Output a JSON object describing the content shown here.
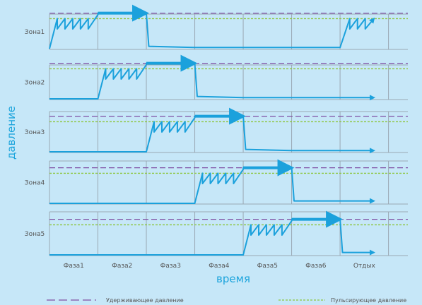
{
  "chart_data": {
    "type": "line",
    "xlabel": "время",
    "ylabel": "давление",
    "categories": [
      "Фаза1",
      "Фаза2",
      "Фаза3",
      "Фаза4",
      "Фаза5",
      "Фаза6",
      "Отдых"
    ],
    "zones": [
      "Зона1",
      "Зона2",
      "Зона3",
      "Зона4",
      "Зона5"
    ],
    "y_scale": {
      "min": 0,
      "max": 1,
      "hold_level": 0.9,
      "pulse_level": 0.76
    },
    "series": [
      {
        "name": "Зона1",
        "points": [
          [
            0,
            0
          ],
          [
            0.16,
            0.76
          ],
          [
            0.16,
            0.5
          ],
          [
            0.32,
            0.76
          ],
          [
            0.32,
            0.5
          ],
          [
            0.48,
            0.76
          ],
          [
            0.48,
            0.5
          ],
          [
            0.64,
            0.76
          ],
          [
            0.64,
            0.5
          ],
          [
            0.8,
            0.76
          ],
          [
            0.8,
            0.5
          ],
          [
            1,
            0.86
          ],
          [
            1,
            0.9
          ],
          [
            2,
            0.9
          ],
          [
            2.05,
            0.06
          ],
          [
            3,
            0.03
          ],
          [
            4,
            0.03
          ],
          [
            5,
            0.03
          ],
          [
            6,
            0.03
          ],
          [
            6.2,
            0.76
          ],
          [
            6.2,
            0.5
          ],
          [
            6.36,
            0.76
          ],
          [
            6.36,
            0.5
          ],
          [
            6.52,
            0.76
          ],
          [
            6.52,
            0.5
          ],
          [
            6.7,
            0.76
          ]
        ]
      },
      {
        "name": "Зона2",
        "points": [
          [
            0,
            0
          ],
          [
            1,
            0
          ],
          [
            1.16,
            0.76
          ],
          [
            1.16,
            0.5
          ],
          [
            1.32,
            0.76
          ],
          [
            1.32,
            0.5
          ],
          [
            1.48,
            0.76
          ],
          [
            1.48,
            0.5
          ],
          [
            1.64,
            0.76
          ],
          [
            1.64,
            0.5
          ],
          [
            1.8,
            0.76
          ],
          [
            1.8,
            0.5
          ],
          [
            2,
            0.86
          ],
          [
            2,
            0.9
          ],
          [
            3,
            0.9
          ],
          [
            3.05,
            0.06
          ],
          [
            4,
            0.03
          ],
          [
            5,
            0.03
          ],
          [
            6,
            0.03
          ],
          [
            6.7,
            0.03
          ]
        ]
      },
      {
        "name": "Зона3",
        "points": [
          [
            0,
            0
          ],
          [
            1,
            0
          ],
          [
            2,
            0
          ],
          [
            2.16,
            0.76
          ],
          [
            2.16,
            0.5
          ],
          [
            2.32,
            0.76
          ],
          [
            2.32,
            0.5
          ],
          [
            2.48,
            0.76
          ],
          [
            2.48,
            0.5
          ],
          [
            2.64,
            0.76
          ],
          [
            2.64,
            0.5
          ],
          [
            2.8,
            0.76
          ],
          [
            2.8,
            0.5
          ],
          [
            3,
            0.86
          ],
          [
            3,
            0.9
          ],
          [
            4,
            0.9
          ],
          [
            4.05,
            0.06
          ],
          [
            5,
            0.03
          ],
          [
            6,
            0.03
          ],
          [
            6.7,
            0.03
          ]
        ]
      },
      {
        "name": "Зона4",
        "points": [
          [
            0,
            0
          ],
          [
            1,
            0
          ],
          [
            2,
            0
          ],
          [
            3,
            0
          ],
          [
            3.16,
            0.76
          ],
          [
            3.16,
            0.5
          ],
          [
            3.32,
            0.76
          ],
          [
            3.32,
            0.5
          ],
          [
            3.48,
            0.76
          ],
          [
            3.48,
            0.5
          ],
          [
            3.64,
            0.76
          ],
          [
            3.64,
            0.5
          ],
          [
            3.8,
            0.76
          ],
          [
            3.8,
            0.5
          ],
          [
            4,
            0.86
          ],
          [
            4,
            0.9
          ],
          [
            5,
            0.9
          ],
          [
            5.05,
            0.06
          ],
          [
            6,
            0.06
          ],
          [
            6.7,
            0.06
          ]
        ]
      },
      {
        "name": "Зона5",
        "points": [
          [
            0,
            0
          ],
          [
            1,
            0
          ],
          [
            2,
            0
          ],
          [
            3,
            0
          ],
          [
            4,
            0
          ],
          [
            4.16,
            0.76
          ],
          [
            4.16,
            0.5
          ],
          [
            4.32,
            0.76
          ],
          [
            4.32,
            0.5
          ],
          [
            4.48,
            0.76
          ],
          [
            4.48,
            0.5
          ],
          [
            4.64,
            0.76
          ],
          [
            4.64,
            0.5
          ],
          [
            4.8,
            0.76
          ],
          [
            4.8,
            0.5
          ],
          [
            5,
            0.86
          ],
          [
            5,
            0.9
          ],
          [
            6,
            0.9
          ],
          [
            6.05,
            0.06
          ],
          [
            6.7,
            0.06
          ]
        ]
      }
    ],
    "hold_arrows": [
      {
        "zone": "Зона1",
        "from": 1,
        "to": 2
      },
      {
        "zone": "Зона2",
        "from": 2,
        "to": 3
      },
      {
        "zone": "Зона3",
        "from": 3,
        "to": 4
      },
      {
        "zone": "Зона4",
        "from": 4,
        "to": 5
      },
      {
        "zone": "Зона5",
        "from": 5,
        "to": 6
      }
    ],
    "legend": {
      "hold_label": "Удерживающее давление",
      "pulse_label": "Пульсирующее давление",
      "hold_color": "#7f4fa3",
      "pulse_color": "#8dc63f"
    },
    "line_color": "#1ba1dc",
    "grid_color": "#9aa8b3",
    "grid": true
  }
}
